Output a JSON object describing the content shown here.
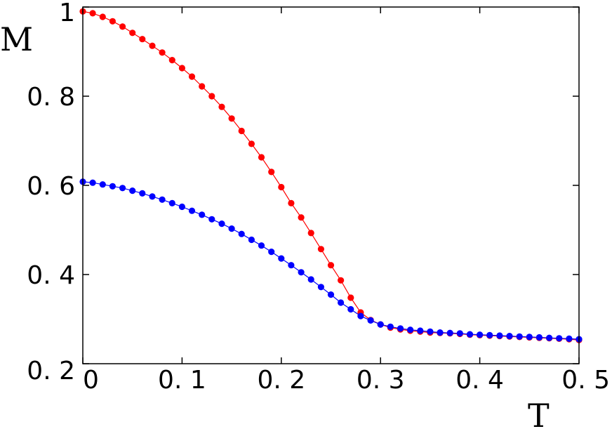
{
  "chart_data": {
    "type": "line",
    "title": "",
    "xlabel": "T",
    "ylabel": "M",
    "xlim": [
      0,
      0.5
    ],
    "ylim": [
      0.2,
      1.0
    ],
    "xticks": [
      0,
      0.1,
      0.2,
      0.3,
      0.4,
      0.5
    ],
    "xtick_labels": [
      "0",
      "0. 1",
      "0. 2",
      "0. 3",
      "0. 4",
      "0. 5"
    ],
    "yticks": [
      0.2,
      0.4,
      0.6,
      0.8,
      1.0
    ],
    "ytick_labels": [
      "0. 2",
      "0. 4",
      "0. 6",
      "0. 8",
      "1"
    ],
    "grid": false,
    "legend": "none",
    "x": [
      0.0,
      0.01,
      0.02,
      0.03,
      0.04,
      0.05,
      0.06,
      0.07,
      0.08,
      0.09,
      0.1,
      0.11,
      0.12,
      0.13,
      0.14,
      0.15,
      0.16,
      0.17,
      0.18,
      0.19,
      0.2,
      0.21,
      0.22,
      0.23,
      0.24,
      0.25,
      0.26,
      0.27,
      0.28,
      0.29,
      0.3,
      0.31,
      0.32,
      0.33,
      0.34,
      0.35,
      0.36,
      0.37,
      0.38,
      0.39,
      0.4,
      0.41,
      0.42,
      0.43,
      0.44,
      0.45,
      0.46,
      0.47,
      0.48,
      0.49,
      0.5
    ],
    "series": [
      {
        "color": "#ff0000",
        "values": [
          0.99,
          0.986,
          0.978,
          0.968,
          0.956,
          0.942,
          0.928,
          0.913,
          0.898,
          0.881,
          0.863,
          0.844,
          0.822,
          0.8,
          0.776,
          0.75,
          0.722,
          0.693,
          0.663,
          0.63,
          0.596,
          0.56,
          0.528,
          0.493,
          0.457,
          0.421,
          0.387,
          0.348,
          0.315,
          0.298,
          0.288,
          0.281,
          0.277,
          0.274,
          0.272,
          0.27,
          0.269,
          0.268,
          0.267,
          0.265,
          0.264,
          0.263,
          0.262,
          0.261,
          0.26,
          0.259,
          0.258,
          0.257,
          0.256,
          0.255,
          0.253
        ]
      },
      {
        "color": "#0000ff",
        "values": [
          0.608,
          0.606,
          0.602,
          0.598,
          0.594,
          0.588,
          0.582,
          0.575,
          0.568,
          0.56,
          0.552,
          0.543,
          0.534,
          0.524,
          0.514,
          0.503,
          0.491,
          0.478,
          0.465,
          0.451,
          0.436,
          0.421,
          0.405,
          0.389,
          0.372,
          0.355,
          0.337,
          0.322,
          0.307,
          0.297,
          0.288,
          0.283,
          0.279,
          0.276,
          0.274,
          0.272,
          0.27,
          0.269,
          0.268,
          0.266,
          0.265,
          0.264,
          0.263,
          0.262,
          0.261,
          0.26,
          0.259,
          0.258,
          0.257,
          0.256,
          0.255
        ]
      }
    ]
  }
}
